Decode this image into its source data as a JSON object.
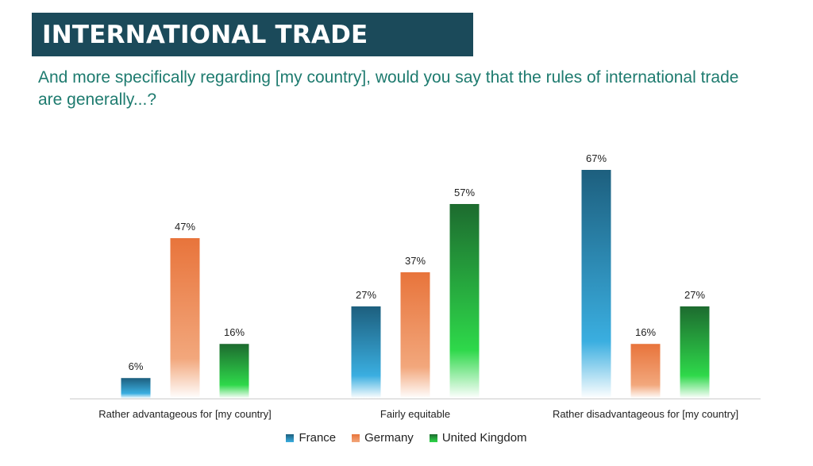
{
  "header": {
    "title": "INTERNATIONAL TRADE",
    "question": "And more specifically regarding [my country], would you say that the rules of international trade are generally...?"
  },
  "colors": {
    "title_bar": "#1b4a5a",
    "question_text": "#1e7b6f"
  },
  "chart_data": {
    "type": "bar",
    "categories": [
      "Rather advantageous for [my country]",
      "Fairly equitable",
      "Rather disadvantageous for [my country]"
    ],
    "series": [
      {
        "name": "France",
        "values": [
          6,
          27,
          67
        ],
        "labels": [
          "6%",
          "27%",
          "67%"
        ],
        "color": "#1d5f7e",
        "color_light": "#3aaee0"
      },
      {
        "name": "Germany",
        "values": [
          47,
          37,
          16
        ],
        "labels": [
          "47%",
          "37%",
          "16%"
        ],
        "color": "#e8743b",
        "color_light": "#f2a77c"
      },
      {
        "name": "United Kingdom",
        "values": [
          16,
          57,
          27
        ],
        "labels": [
          "16%",
          "57%",
          "27%"
        ],
        "color": "#1d6b2f",
        "color_light": "#2ed84a"
      }
    ],
    "ylim": [
      0,
      70
    ],
    "grid": false,
    "legend_position": "bottom"
  }
}
